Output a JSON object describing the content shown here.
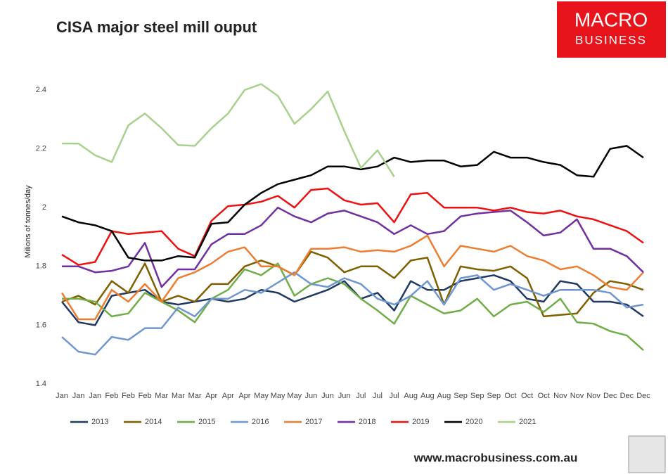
{
  "chart_data": {
    "type": "line",
    "title": "CISA major steel mill ouput",
    "y_label": "Milions of tonnes/day",
    "logo": {
      "line1": "MACRO",
      "line2": "BUSINESS"
    },
    "footer": "www.macrobusiness.com.au",
    "categories": [
      "Jan",
      "Jan",
      "Jan",
      "Feb",
      "Feb",
      "Feb",
      "Mar",
      "Mar",
      "Mar",
      "Apr",
      "Apr",
      "Apr",
      "May",
      "May",
      "May",
      "Jun",
      "Jun",
      "Jun",
      "Jul",
      "Jul",
      "Jul",
      "Aug",
      "Aug",
      "Aug",
      "Sep",
      "Sep",
      "Sep",
      "Oct",
      "Oct",
      "Oct",
      "Nov",
      "Nov",
      "Nov",
      "Dec",
      "Dec",
      "Dec"
    ],
    "ylim": [
      1.4,
      2.5
    ],
    "yticks": [
      1.4,
      1.6,
      1.8,
      2,
      2.2,
      2.4
    ],
    "grid": false,
    "legend": "bottom",
    "series": [
      {
        "name": "2013",
        "color": "#1f3864",
        "values": [
          1.68,
          1.61,
          1.6,
          1.7,
          1.71,
          1.72,
          1.68,
          1.67,
          1.68,
          1.69,
          1.68,
          1.69,
          1.72,
          1.71,
          1.68,
          1.7,
          1.72,
          1.75,
          1.69,
          1.71,
          1.65,
          1.75,
          1.72,
          1.72,
          1.75,
          1.76,
          1.77,
          1.75,
          1.69,
          1.68,
          1.75,
          1.74,
          1.68,
          1.68,
          1.67,
          1.63
        ]
      },
      {
        "name": "2014",
        "color": "#7f6000",
        "values": [
          1.68,
          1.7,
          1.67,
          1.75,
          1.71,
          1.81,
          1.68,
          1.7,
          1.68,
          1.74,
          1.74,
          1.8,
          1.82,
          1.8,
          1.77,
          1.85,
          1.83,
          1.78,
          1.8,
          1.8,
          1.76,
          1.82,
          1.83,
          1.67,
          1.8,
          1.79,
          1.785,
          1.8,
          1.76,
          1.63,
          1.635,
          1.64,
          1.71,
          1.75,
          1.74,
          1.72
        ]
      },
      {
        "name": "2015",
        "color": "#70ad47",
        "values": [
          1.69,
          1.69,
          1.68,
          1.63,
          1.64,
          1.71,
          1.68,
          1.65,
          1.61,
          1.69,
          1.72,
          1.79,
          1.77,
          1.81,
          1.7,
          1.74,
          1.76,
          1.74,
          1.69,
          1.65,
          1.605,
          1.7,
          1.67,
          1.64,
          1.65,
          1.69,
          1.63,
          1.67,
          1.68,
          1.645,
          1.69,
          1.61,
          1.605,
          1.58,
          1.565,
          1.515
        ]
      },
      {
        "name": "2016",
        "color": "#6f96d0",
        "values": [
          1.56,
          1.51,
          1.5,
          1.56,
          1.55,
          1.59,
          1.59,
          1.66,
          1.63,
          1.69,
          1.69,
          1.72,
          1.71,
          1.745,
          1.78,
          1.74,
          1.73,
          1.76,
          1.74,
          1.69,
          1.67,
          1.7,
          1.75,
          1.67,
          1.76,
          1.77,
          1.72,
          1.74,
          1.72,
          1.7,
          1.72,
          1.72,
          1.72,
          1.71,
          1.66,
          1.67
        ]
      },
      {
        "name": "2017",
        "color": "#ed7d31",
        "values": [
          1.71,
          1.62,
          1.62,
          1.72,
          1.68,
          1.74,
          1.68,
          1.76,
          1.78,
          1.81,
          1.85,
          1.865,
          1.8,
          1.8,
          1.77,
          1.86,
          1.86,
          1.865,
          1.85,
          1.855,
          1.85,
          1.87,
          1.905,
          1.8,
          1.87,
          1.86,
          1.85,
          1.87,
          1.835,
          1.82,
          1.79,
          1.8,
          1.77,
          1.73,
          1.72,
          1.78
        ]
      },
      {
        "name": "2018",
        "color": "#7030a0",
        "values": [
          1.8,
          1.8,
          1.78,
          1.785,
          1.8,
          1.88,
          1.73,
          1.79,
          1.79,
          1.875,
          1.91,
          1.91,
          1.94,
          2.0,
          1.97,
          1.95,
          1.98,
          1.99,
          1.97,
          1.95,
          1.91,
          1.94,
          1.91,
          1.92,
          1.97,
          1.98,
          1.985,
          1.99,
          1.95,
          1.905,
          1.915,
          1.96,
          1.86,
          1.86,
          1.835,
          1.78
        ]
      },
      {
        "name": "2019",
        "color": "#ee1111",
        "values": [
          1.84,
          1.805,
          1.815,
          1.92,
          1.91,
          1.915,
          1.92,
          1.86,
          1.835,
          1.955,
          2.005,
          2.01,
          2.02,
          2.04,
          2.0,
          2.06,
          2.065,
          2.025,
          2.01,
          2.015,
          1.95,
          2.045,
          2.05,
          2.0,
          2.0,
          2.0,
          1.99,
          2.0,
          1.985,
          1.98,
          1.99,
          1.97,
          1.96,
          1.94,
          1.92,
          1.88
        ]
      },
      {
        "name": "2020",
        "color": "#000000",
        "values": [
          1.97,
          1.95,
          1.94,
          1.92,
          1.83,
          1.82,
          1.82,
          1.835,
          1.83,
          1.945,
          1.95,
          2.01,
          2.05,
          2.08,
          2.095,
          2.11,
          2.14,
          2.14,
          2.13,
          2.14,
          2.17,
          2.155,
          2.16,
          2.16,
          2.14,
          2.145,
          2.19,
          2.17,
          2.17,
          2.155,
          2.145,
          2.11,
          2.105,
          2.2,
          2.21,
          2.17
        ]
      },
      {
        "name": "2021",
        "color": "#a9d18e",
        "values": [
          2.218,
          2.218,
          2.178,
          2.155,
          2.28,
          2.32,
          2.27,
          2.213,
          2.21,
          2.27,
          2.32,
          2.4,
          2.42,
          2.38,
          2.285,
          2.335,
          2.395,
          2.26,
          2.135,
          2.195,
          2.105,
          null,
          null,
          null,
          null,
          null,
          null,
          null,
          null,
          null,
          null,
          null,
          null,
          null,
          null,
          null
        ]
      }
    ]
  }
}
